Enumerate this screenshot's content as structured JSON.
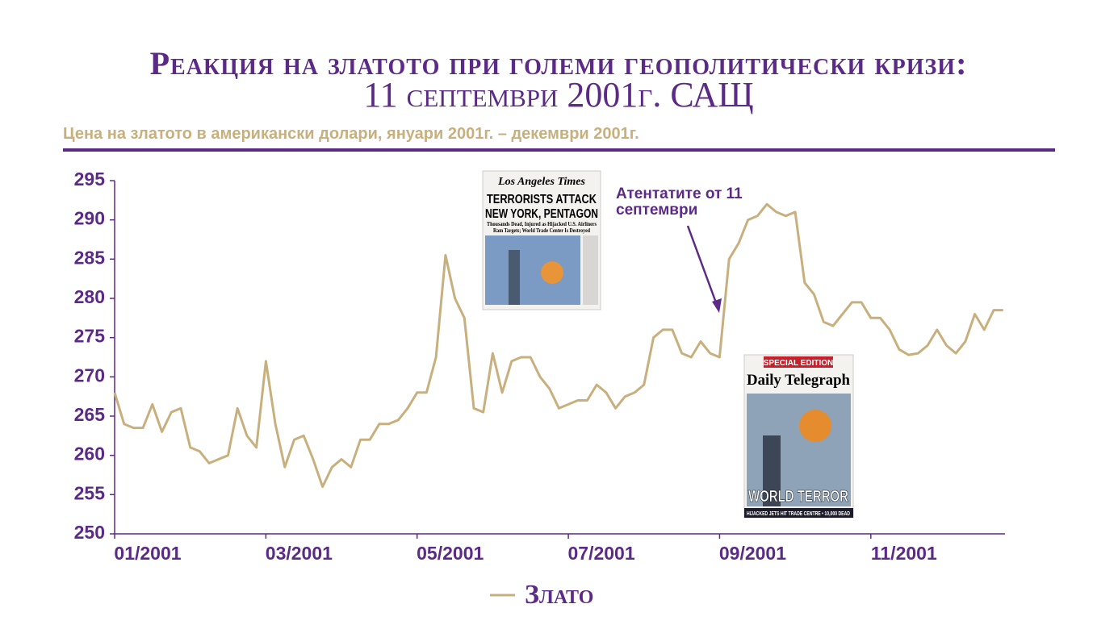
{
  "chart_data": {
    "type": "line",
    "title": "Реакция на златото при големи геополитически кризи:",
    "title_line2": "11 септември 2001г. САЩ",
    "subtitle": "Цена на златото в американски долари, януари 2001г. – декември 2001г.",
    "annotation_lines": [
      "Атентатите от 11",
      "септември"
    ],
    "newspapers": [
      {
        "masthead": "Los Angeles Times",
        "headline": [
          "TERRORISTS ATTACK",
          "NEW YORK, PENTAGON"
        ],
        "subhead": [
          "Thousands Dead, Injured as Hijacked U.S. Airliners",
          "Ram Targets; World Trade Center Is Destroyed"
        ]
      },
      {
        "banner": "SPECIAL EDITION",
        "masthead": "Daily Telegraph",
        "headline": [
          "WORLD TERROR"
        ],
        "subhead": [
          "HIJACKED JETS HIT TRADE CENTRE • 10,000 DEAD"
        ]
      }
    ],
    "categories": [
      "01/2001",
      null,
      null,
      null,
      null,
      null,
      null,
      null,
      null,
      null,
      null,
      null,
      null,
      null,
      null,
      null,
      "03/2001",
      null,
      null,
      null,
      null,
      null,
      null,
      null,
      null,
      null,
      null,
      null,
      null,
      null,
      null,
      null,
      "05/2001",
      null,
      null,
      null,
      null,
      null,
      null,
      null,
      null,
      null,
      null,
      null,
      null,
      null,
      null,
      null,
      "07/2001",
      null,
      null,
      null,
      null,
      null,
      null,
      null,
      null,
      null,
      null,
      null,
      null,
      null,
      null,
      null,
      "09/2001",
      null,
      null,
      null,
      null,
      null,
      null,
      null,
      null,
      null,
      null,
      null,
      null,
      null,
      null,
      null,
      "11/2001",
      null,
      null,
      null,
      null,
      null,
      null,
      null,
      null,
      null,
      null,
      null,
      null,
      null,
      null
    ],
    "series": [
      {
        "name": "Злато",
        "color": "#c8b07e",
        "values": [
          268,
          264,
          263.5,
          263.5,
          266.5,
          263,
          265.5,
          266,
          261,
          260.5,
          259,
          259.5,
          260,
          266,
          262.5,
          261,
          272,
          264,
          258.5,
          262,
          262.5,
          259.5,
          256,
          258.5,
          259.5,
          258.5,
          262,
          262,
          264,
          264,
          264.5,
          266,
          268,
          268,
          272.5,
          285.5,
          280,
          277.5,
          266,
          265.5,
          273,
          268,
          272,
          272.5,
          272.5,
          270,
          268.5,
          266,
          266.5,
          267,
          267,
          269,
          268,
          266,
          267.5,
          268,
          269,
          275,
          276,
          276,
          273,
          272.5,
          274.5,
          273,
          272.5,
          285,
          287,
          290,
          290.5,
          292,
          291,
          290.5,
          291,
          282,
          280.5,
          277,
          276.5,
          278,
          279.5,
          279.5,
          277.5,
          277.5,
          276,
          273.5,
          272.8,
          273,
          274,
          276,
          274,
          273,
          274.5,
          278,
          276,
          278.5,
          278.5
        ]
      }
    ],
    "ylim": [
      250,
      295
    ],
    "yticks": [
      250,
      255,
      260,
      265,
      270,
      275,
      280,
      285,
      290,
      295
    ],
    "axis_color": "#5b2a86"
  }
}
